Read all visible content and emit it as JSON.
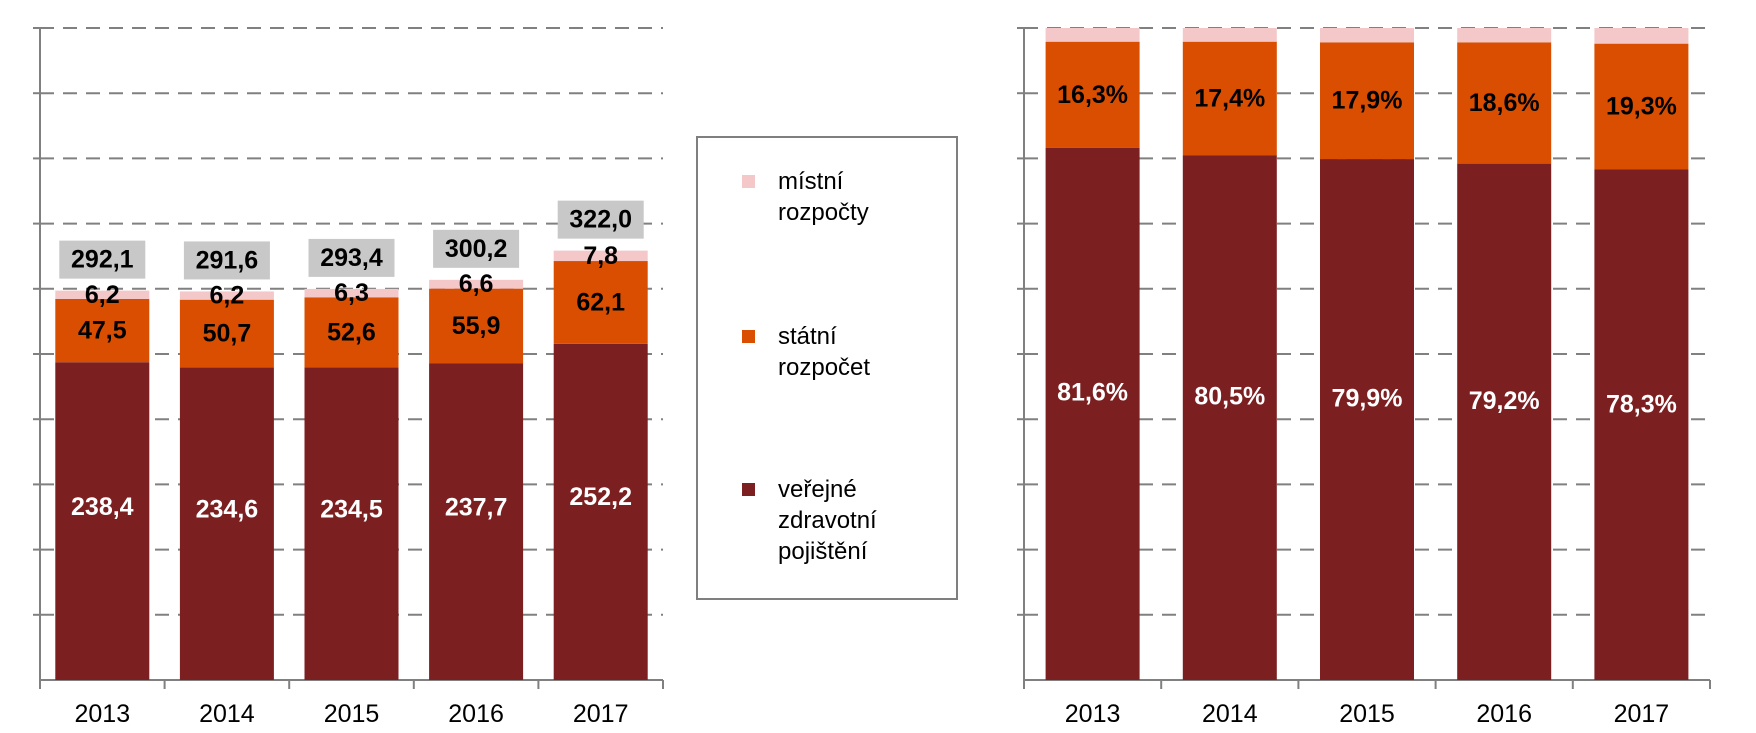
{
  "chart_data": [
    {
      "type": "bar",
      "stacked": true,
      "categories": [
        "2013",
        "2014",
        "2015",
        "2016",
        "2017"
      ],
      "series": [
        {
          "name": "veřejné zdravotní pojištění",
          "color": "#7b1f20",
          "values": [
            238.4,
            234.6,
            234.5,
            237.7,
            252.2
          ],
          "labels": [
            "238,4",
            "234,6",
            "234,5",
            "237,7",
            "252,2"
          ]
        },
        {
          "name": "státní rozpočet",
          "color": "#d94e00",
          "values": [
            47.5,
            50.7,
            52.6,
            55.9,
            62.1
          ],
          "labels": [
            "47,5",
            "50,7",
            "52,6",
            "55,9",
            "62,1"
          ]
        },
        {
          "name": "místní rozpočty",
          "color": "#f4c7c8",
          "values": [
            6.2,
            6.2,
            6.3,
            6.6,
            7.8
          ],
          "labels": [
            "6,2",
            "6,2",
            "6,3",
            "6,6",
            "7,8"
          ]
        }
      ],
      "totals": [
        "292,1",
        "291,6",
        "293,4",
        "300,2",
        "322,0"
      ],
      "ylim": [
        0,
        350
      ],
      "grid": true
    },
    {
      "type": "bar",
      "stacked": true,
      "percent": true,
      "categories": [
        "2013",
        "2014",
        "2015",
        "2016",
        "2017"
      ],
      "series": [
        {
          "name": "veřejné zdravotní pojištění",
          "color": "#7b1f20",
          "values": [
            81.6,
            80.5,
            79.9,
            79.2,
            78.3
          ],
          "labels": [
            "81,6%",
            "80,5%",
            "79,9%",
            "79,2%",
            "78,3%"
          ]
        },
        {
          "name": "státní rozpočet",
          "color": "#d94e00",
          "values": [
            16.3,
            17.4,
            17.9,
            18.6,
            19.3
          ],
          "labels": [
            "16,3%",
            "17,4%",
            "17,9%",
            "18,6%",
            "19,3%"
          ]
        },
        {
          "name": "místní rozpočty",
          "color": "#f4c7c8",
          "values": [
            2.1,
            2.1,
            2.2,
            2.2,
            2.4
          ]
        }
      ],
      "ylim": [
        0,
        100
      ],
      "grid": true
    }
  ],
  "legend": {
    "items": [
      {
        "lines": [
          "místní",
          "rozpočty"
        ],
        "color": "#f4c7c8"
      },
      {
        "lines": [
          "státní",
          "rozpočet"
        ],
        "color": "#d94e00"
      },
      {
        "lines": [
          "veřejné",
          "zdravotní",
          "pojištění"
        ],
        "color": "#7b1f20"
      }
    ]
  }
}
